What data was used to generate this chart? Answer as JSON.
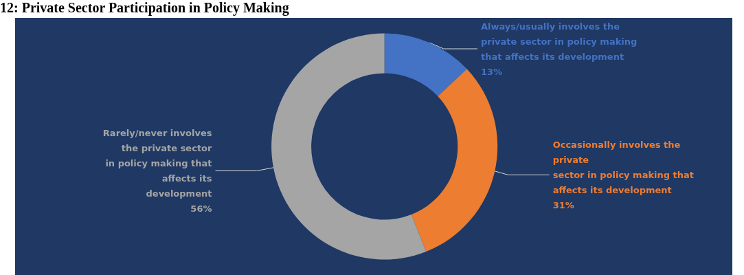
{
  "chart_data": {
    "type": "donut",
    "title": "12: Private Sector Participation in Policy Making",
    "categories": [
      "Always/usually involves the\nprivate sector in policy making\nthat affects its development",
      "Occasionally involves the\nprivate\nsector in policy making that\naffects its development",
      "Rarely/never involves\nthe private sector\nin policy making that\naffects its\ndevelopment"
    ],
    "values": [
      13,
      31,
      56
    ],
    "colors": [
      "#4472c4",
      "#ed7d31",
      "#a5a5a5"
    ],
    "value_labels": [
      "13%",
      "31%",
      "56%"
    ],
    "legend": false
  }
}
